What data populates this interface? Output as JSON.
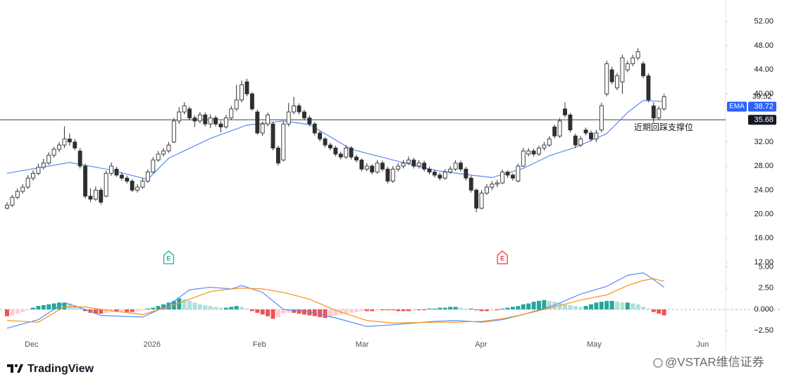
{
  "chart_data": {
    "type": "candlestick",
    "up_color": "#ffffff",
    "down_color": "#2f2f2f",
    "outline_color": "#2f2f2f",
    "xlim": [
      -1.35,
      137.8
    ],
    "xticks": [
      {
        "value": 4.7,
        "label": "Dec"
      },
      {
        "value": 27.8,
        "label": "2026"
      },
      {
        "value": 48.4,
        "label": "Feb"
      },
      {
        "value": 68.1,
        "label": "Mar"
      },
      {
        "value": 90.9,
        "label": "Apr"
      },
      {
        "value": 112.6,
        "label": "May"
      },
      {
        "value": 133.4,
        "label": "Jun"
      }
    ],
    "ylim": [
      11,
      55.6
    ],
    "yticks": [
      {
        "value": 52,
        "label": "52.00"
      },
      {
        "value": 48,
        "label": "48.00"
      },
      {
        "value": 44,
        "label": "44.00"
      },
      {
        "value": 40,
        "label": "40.00"
      },
      {
        "value": 32,
        "label": "32.00"
      },
      {
        "value": 28,
        "label": "28.00"
      },
      {
        "value": 24,
        "label": "24.00"
      },
      {
        "value": 20,
        "label": "20.00"
      },
      {
        "value": 16,
        "label": "16.00"
      },
      {
        "value": 12,
        "label": "12.00"
      }
    ],
    "candles": [
      [
        21.0,
        22.0,
        20.8,
        21.5
      ],
      [
        21.5,
        23.2,
        21.2,
        22.8
      ],
      [
        22.8,
        24.3,
        22.5,
        23.8
      ],
      [
        23.8,
        25.0,
        23.4,
        24.5
      ],
      [
        24.5,
        26.5,
        24.2,
        26.0
      ],
      [
        26.0,
        27.3,
        25.6,
        26.8
      ],
      [
        26.8,
        28.4,
        26.5,
        27.8
      ],
      [
        27.8,
        29.2,
        27.4,
        28.5
      ],
      [
        28.5,
        30.3,
        28.2,
        29.8
      ],
      [
        29.8,
        31.2,
        29.4,
        30.8
      ],
      [
        30.8,
        32.0,
        30.3,
        31.5
      ],
      [
        31.5,
        34.6,
        31.0,
        32.5
      ],
      [
        32.5,
        33.4,
        31.4,
        32.0
      ],
      [
        32.0,
        32.5,
        30.6,
        31.0
      ],
      [
        30.5,
        31.0,
        27.6,
        28.0
      ],
      [
        28.0,
        28.4,
        22.6,
        23.0
      ],
      [
        23.0,
        24.3,
        22.0,
        22.5
      ],
      [
        22.5,
        24.6,
        22.2,
        24.0
      ],
      [
        24.0,
        24.4,
        21.6,
        22.0
      ],
      [
        23.0,
        27.2,
        22.8,
        26.8
      ],
      [
        26.8,
        28.6,
        26.4,
        28.0
      ],
      [
        27.5,
        27.9,
        26.2,
        26.5
      ],
      [
        26.5,
        27.0,
        25.6,
        26.0
      ],
      [
        26.0,
        26.4,
        25.1,
        25.5
      ],
      [
        25.5,
        25.8,
        23.7,
        24.0
      ],
      [
        24.0,
        25.0,
        23.6,
        24.5
      ],
      [
        24.5,
        26.0,
        24.2,
        25.5
      ],
      [
        25.5,
        27.4,
        25.2,
        27.0
      ],
      [
        27.0,
        29.5,
        26.8,
        29.0
      ],
      [
        29.0,
        30.5,
        28.7,
        30.0
      ],
      [
        30.0,
        31.0,
        29.6,
        30.5
      ],
      [
        30.5,
        32.0,
        30.2,
        31.5
      ],
      [
        32.0,
        36.0,
        31.8,
        35.5
      ],
      [
        35.5,
        37.8,
        35.0,
        37.0
      ],
      [
        37.0,
        38.6,
        36.6,
        38.0
      ],
      [
        37.5,
        37.9,
        35.6,
        36.0
      ],
      [
        36.0,
        36.4,
        34.5,
        35.5
      ],
      [
        35.5,
        37.0,
        35.1,
        36.5
      ],
      [
        36.5,
        36.9,
        34.6,
        35.0
      ],
      [
        35.0,
        36.6,
        34.3,
        36.0
      ],
      [
        36.0,
        36.4,
        34.6,
        35.0
      ],
      [
        35.0,
        35.5,
        33.6,
        34.5
      ],
      [
        34.5,
        36.5,
        34.2,
        36.0
      ],
      [
        36.0,
        38.0,
        35.7,
        37.5
      ],
      [
        37.5,
        41.5,
        37.2,
        39.0
      ],
      [
        39.0,
        42.2,
        38.6,
        41.5
      ],
      [
        42.0,
        42.5,
        39.6,
        40.0
      ],
      [
        40.0,
        40.3,
        37.2,
        37.5
      ],
      [
        37.0,
        37.4,
        33.2,
        33.5
      ],
      [
        33.5,
        35.4,
        33.0,
        35.0
      ],
      [
        35.0,
        36.9,
        34.6,
        36.5
      ],
      [
        35.0,
        35.3,
        30.6,
        31.0
      ],
      [
        31.0,
        31.4,
        28.1,
        28.5
      ],
      [
        29.0,
        35.4,
        28.8,
        35.0
      ],
      [
        35.0,
        38.5,
        34.6,
        37.0
      ],
      [
        37.0,
        39.5,
        36.6,
        38.0
      ],
      [
        38.0,
        38.4,
        36.6,
        37.0
      ],
      [
        37.0,
        37.4,
        35.6,
        36.0
      ],
      [
        36.0,
        36.4,
        34.6,
        35.0
      ],
      [
        35.0,
        35.3,
        33.1,
        33.5
      ],
      [
        33.5,
        33.9,
        32.1,
        32.5
      ],
      [
        32.5,
        32.8,
        31.1,
        31.5
      ],
      [
        31.5,
        31.9,
        30.6,
        31.0
      ],
      [
        31.0,
        31.4,
        29.6,
        30.0
      ],
      [
        30.0,
        30.4,
        29.1,
        29.5
      ],
      [
        29.5,
        31.5,
        29.2,
        31.0
      ],
      [
        31.0,
        31.3,
        29.1,
        29.5
      ],
      [
        29.5,
        29.9,
        28.6,
        29.0
      ],
      [
        29.0,
        29.3,
        27.1,
        27.5
      ],
      [
        27.5,
        28.5,
        27.2,
        28.0
      ],
      [
        28.0,
        28.3,
        26.6,
        27.0
      ],
      [
        27.0,
        29.0,
        26.7,
        28.5
      ],
      [
        28.5,
        28.9,
        27.1,
        27.5
      ],
      [
        27.5,
        27.9,
        25.1,
        25.5
      ],
      [
        25.5,
        28.0,
        25.2,
        27.5
      ],
      [
        27.5,
        28.5,
        27.1,
        28.0
      ],
      [
        28.0,
        29.0,
        27.6,
        28.5
      ],
      [
        28.5,
        29.6,
        28.2,
        29.0
      ],
      [
        29.0,
        29.4,
        27.6,
        28.0
      ],
      [
        28.0,
        29.0,
        27.6,
        28.5
      ],
      [
        28.5,
        28.9,
        27.1,
        27.5
      ],
      [
        27.5,
        27.9,
        26.6,
        27.0
      ],
      [
        27.0,
        27.4,
        26.1,
        26.5
      ],
      [
        26.5,
        26.9,
        25.6,
        26.0
      ],
      [
        26.0,
        27.5,
        25.7,
        27.0
      ],
      [
        27.0,
        28.0,
        26.7,
        27.5
      ],
      [
        27.5,
        29.0,
        27.2,
        28.5
      ],
      [
        28.5,
        28.9,
        27.1,
        27.5
      ],
      [
        27.5,
        27.9,
        25.6,
        26.0
      ],
      [
        26.0,
        26.4,
        23.6,
        24.0
      ],
      [
        24.0,
        24.3,
        20.3,
        21.0
      ],
      [
        21.0,
        24.0,
        20.8,
        23.5
      ],
      [
        23.5,
        25.0,
        23.2,
        24.5
      ],
      [
        24.5,
        25.5,
        24.0,
        25.0
      ],
      [
        25.0,
        25.7,
        24.5,
        25.2
      ],
      [
        25.2,
        27.4,
        25.0,
        27.0
      ],
      [
        27.0,
        27.3,
        26.0,
        26.5
      ],
      [
        26.5,
        26.8,
        25.6,
        26.0
      ],
      [
        25.5,
        28.4,
        25.3,
        28.0
      ],
      [
        28.0,
        31.0,
        27.8,
        30.5
      ],
      [
        30.0,
        31.0,
        29.6,
        30.5
      ],
      [
        30.5,
        30.9,
        29.6,
        30.0
      ],
      [
        30.0,
        31.4,
        29.7,
        31.0
      ],
      [
        31.0,
        32.0,
        30.6,
        31.5
      ],
      [
        31.5,
        33.0,
        31.2,
        32.5
      ],
      [
        34.5,
        34.9,
        32.6,
        33.0
      ],
      [
        33.0,
        36.0,
        32.7,
        35.5
      ],
      [
        37.5,
        38.6,
        36.1,
        36.5
      ],
      [
        36.5,
        36.8,
        33.6,
        34.0
      ],
      [
        33.0,
        33.4,
        31.0,
        31.5
      ],
      [
        31.5,
        33.0,
        31.2,
        32.5
      ],
      [
        34.0,
        34.4,
        33.1,
        33.5
      ],
      [
        33.5,
        33.9,
        32.1,
        32.5
      ],
      [
        32.5,
        34.0,
        32.0,
        33.5
      ],
      [
        34.0,
        38.5,
        33.6,
        38.0
      ],
      [
        40.0,
        45.5,
        39.6,
        45.0
      ],
      [
        44.0,
        44.5,
        41.6,
        42.0
      ],
      [
        41.0,
        43.5,
        40.6,
        43.0
      ],
      [
        42.0,
        46.5,
        40.0,
        46.0
      ],
      [
        44.0,
        45.5,
        43.6,
        45.0
      ],
      [
        45.0,
        46.5,
        44.6,
        46.0
      ],
      [
        46.0,
        47.6,
        45.6,
        47.0
      ],
      [
        45.0,
        45.4,
        42.6,
        43.0
      ],
      [
        43.0,
        43.4,
        38.6,
        39.0
      ],
      [
        38.0,
        38.6,
        35.2,
        36.0
      ],
      [
        36.0,
        37.9,
        35.6,
        37.5
      ],
      [
        37.5,
        40.0,
        37.2,
        39.52
      ]
    ],
    "ema": {
      "name": "EMA",
      "color": "#5b8def",
      "x": [
        0,
        12,
        19,
        27,
        31,
        39,
        46,
        53,
        58,
        66,
        74,
        82,
        88,
        93,
        99,
        104,
        109,
        115,
        119,
        122,
        126
      ],
      "values": [
        26.8,
        28.6,
        27.5,
        25.8,
        29.3,
        32.6,
        34.8,
        35.5,
        34.9,
        30.8,
        29.0,
        27.3,
        26.6,
        26.1,
        27.6,
        29.7,
        31.1,
        33.4,
        36.9,
        38.9,
        38.72
      ]
    },
    "hline": {
      "value": 35.68,
      "color": "#787b86"
    },
    "annotation": "近期回踩支撑位",
    "earnings": [
      {
        "x": 31,
        "label": "E",
        "color": "#22ab94"
      },
      {
        "x": 95,
        "label": "E",
        "color": "#f23645"
      }
    ],
    "macd": {
      "ylim": [
        -3.3,
        5.36
      ],
      "yticks": [
        {
          "value": 5,
          "label": "5.00"
        },
        {
          "value": 2.5,
          "label": "2.50"
        },
        {
          "value": 0,
          "label": "0.000"
        },
        {
          "value": -2.5,
          "label": "−2.50"
        }
      ],
      "hist_colors": {
        "pos_up": "#26a69a",
        "pos_down": "#b2dfdb",
        "neg_down": "#ef5350",
        "neg_up": "#ffcdd2"
      },
      "histogram": [
        -0.8,
        -0.7,
        -0.5,
        -0.3,
        -0.1,
        0.2,
        0.4,
        0.5,
        0.6,
        0.7,
        0.8,
        0.8,
        0.7,
        0.5,
        0.2,
        -0.2,
        -0.4,
        -0.5,
        -0.5,
        -0.4,
        -0.3,
        -0.3,
        -0.2,
        -0.3,
        -0.3,
        -0.2,
        -0.1,
        0.1,
        0.2,
        0.4,
        0.6,
        0.8,
        1.0,
        1.3,
        1.2,
        1.0,
        0.8,
        0.6,
        0.5,
        0.4,
        0.3,
        0.2,
        0.2,
        0.3,
        0.4,
        0.3,
        0.1,
        -0.2,
        -0.4,
        -0.6,
        -0.8,
        -1.1,
        -0.9,
        -0.5,
        -0.4,
        -0.4,
        -0.5,
        -0.6,
        -0.7,
        -0.8,
        -0.9,
        -1.0,
        -0.9,
        -0.7,
        -0.6,
        -0.5,
        -0.4,
        -0.3,
        -0.2,
        -0.2,
        -0.2,
        -0.1,
        -0.1,
        -0.1,
        -0.1,
        -0.2,
        -0.2,
        -0.2,
        -0.1,
        -0.1,
        -0.1,
        0.1,
        0.1,
        0.2,
        0.2,
        0.3,
        0.3,
        0.2,
        0.1,
        0.1,
        -0.1,
        -0.2,
        -0.2,
        -0.1,
        -0.1,
        0.1,
        0.2,
        0.3,
        0.4,
        0.6,
        0.7,
        0.9,
        1.0,
        1.1,
        1.0,
        0.9,
        0.8,
        0.6,
        0.5,
        0.4,
        0.3,
        0.4,
        0.6,
        0.8,
        0.9,
        1.0,
        1.0,
        0.9,
        0.8,
        0.8,
        0.7,
        0.6,
        0.3,
        0.1,
        -0.3,
        -0.5,
        -0.7
      ],
      "macd_line": {
        "color": "#5b8def",
        "x": [
          0,
          6,
          11,
          15,
          18,
          26,
          31,
          35,
          39,
          43,
          45,
          49,
          53,
          58,
          63,
          69,
          74,
          82,
          86,
          91,
          95,
          99,
          105,
          110,
          115,
          119,
          122,
          124,
          126
        ],
        "values": [
          -2.2,
          -1.2,
          0.8,
          0.0,
          -0.7,
          -0.9,
          0.5,
          2.3,
          2.6,
          2.4,
          2.8,
          2.0,
          0.0,
          -0.3,
          -1.0,
          -2.0,
          -1.8,
          -1.4,
          -1.3,
          -1.5,
          -1.2,
          -0.6,
          0.5,
          1.8,
          2.7,
          4.0,
          4.3,
          3.5,
          2.6
        ]
      },
      "signal_line": {
        "color": "#f7931a",
        "x": [
          0,
          6,
          11,
          15,
          18,
          26,
          31,
          35,
          39,
          43,
          45,
          49,
          53,
          58,
          63,
          69,
          74,
          82,
          86,
          91,
          95,
          99,
          105,
          110,
          115,
          119,
          122,
          124,
          126
        ],
        "values": [
          -1.3,
          -1.5,
          0.3,
          0.3,
          0.0,
          -0.6,
          0.3,
          1.2,
          2.1,
          2.4,
          2.5,
          2.4,
          2.0,
          1.2,
          -0.1,
          -1.3,
          -1.6,
          -1.5,
          -1.5,
          -1.4,
          -1.1,
          -0.6,
          0.3,
          1.1,
          1.7,
          2.8,
          3.4,
          3.6,
          3.3
        ]
      }
    }
  },
  "branding": "TradingView",
  "watermark": "@VSTAR维信证券"
}
